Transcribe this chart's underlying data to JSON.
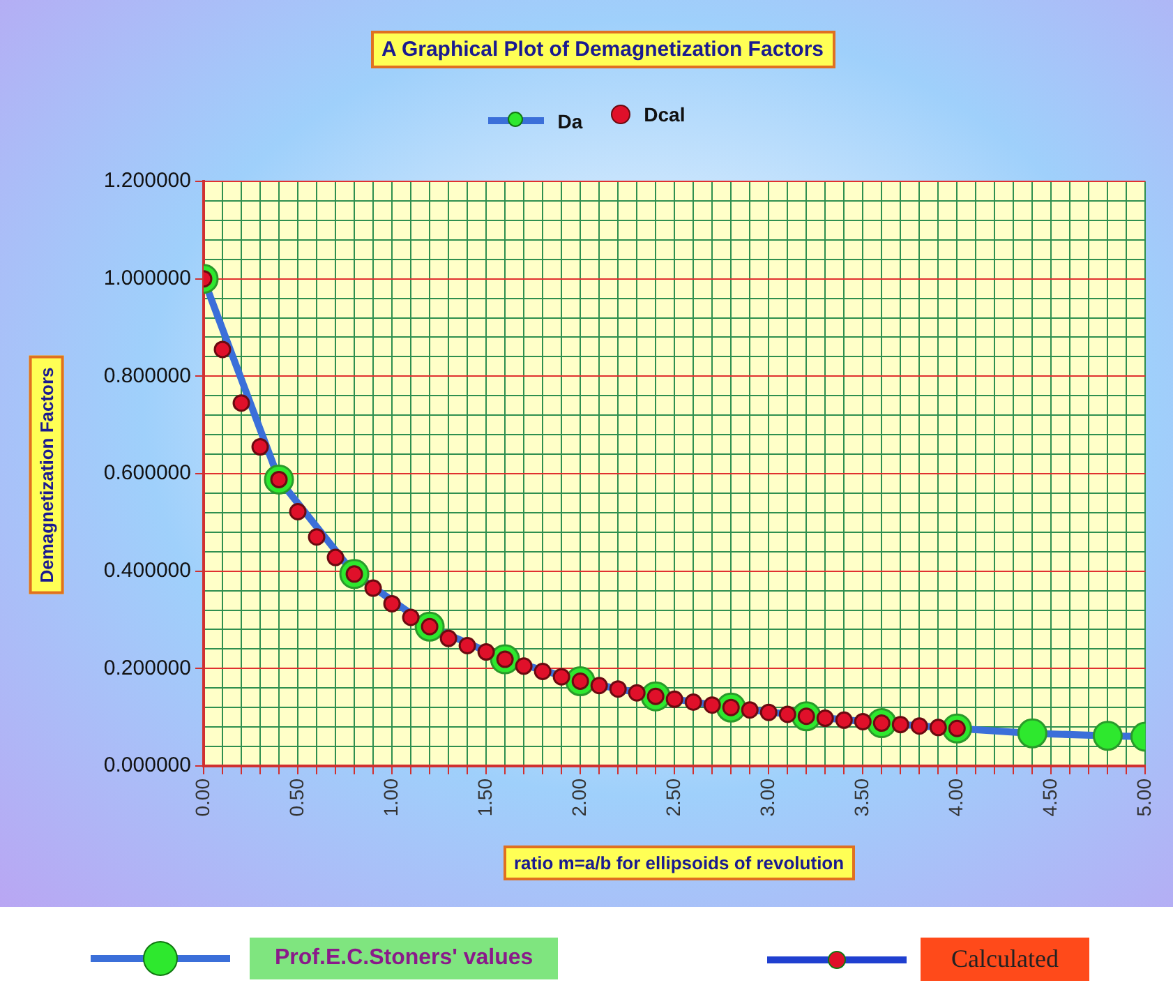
{
  "chart_data": {
    "type": "line",
    "title": "A Graphical Plot of Demagnetization Factors",
    "xlabel": "ratio m=a/b for ellipsoids of revolution",
    "ylabel": "Demagnetization Factors",
    "series": [
      {
        "name": "Da",
        "type": "line",
        "color": "#3b6fd9",
        "x": [
          0,
          0.4,
          0.8,
          1.2,
          1.6,
          2.0,
          2.4,
          2.8,
          3.2,
          3.6,
          4.0,
          4.4,
          4.8,
          5.0
        ],
        "values": [
          1.0,
          0.588,
          0.394,
          0.286,
          0.219,
          0.174,
          0.143,
          0.12,
          0.102,
          0.088,
          0.077,
          0.067,
          0.062,
          0.06
        ],
        "colors": [
          "#2ee82e",
          "#2ee82e",
          "#2ee82e",
          "#2ee82e",
          "#2ee82e",
          "#2ee82e",
          "#2ee82e",
          "#2ee82e",
          "#2ee82e",
          "#2ee82e",
          "#2ee82e",
          "#2ee82e",
          "#2ee82e",
          "#2ee82e"
        ]
      },
      {
        "name": "Dcal",
        "type": "scatter",
        "color": "#e0102a",
        "x": [
          0,
          0.1,
          0.2,
          0.3,
          0.4,
          0.5,
          0.6,
          0.7,
          0.8,
          0.9,
          1.0,
          1.1,
          1.2,
          1.3,
          1.4,
          1.5,
          1.6,
          1.7,
          1.8,
          1.9,
          2.0,
          2.1,
          2.2,
          2.3,
          2.4,
          2.5,
          2.6,
          2.7,
          2.8,
          2.9,
          3.0,
          3.1,
          3.2,
          3.3,
          3.4,
          3.5,
          3.6,
          3.7,
          3.8,
          3.9,
          4.0
        ],
        "values": [
          1.0,
          0.855,
          0.745,
          0.655,
          0.588,
          0.522,
          0.47,
          0.428,
          0.394,
          0.365,
          0.333,
          0.305,
          0.286,
          0.262,
          0.247,
          0.234,
          0.219,
          0.205,
          0.194,
          0.183,
          0.174,
          0.165,
          0.158,
          0.15,
          0.143,
          0.137,
          0.131,
          0.125,
          0.12,
          0.115,
          0.11,
          0.106,
          0.102,
          0.098,
          0.094,
          0.091,
          0.088,
          0.085,
          0.082,
          0.079,
          0.077
        ]
      }
    ],
    "xlim": [
      0,
      5
    ],
    "xticks": [
      {
        "value": 0,
        "label": "0.00"
      },
      {
        "value": 0.1,
        "label": null
      },
      {
        "value": 0.2,
        "label": null
      },
      {
        "value": 0.3,
        "label": null
      },
      {
        "value": 0.4,
        "label": null
      },
      {
        "value": 0.5,
        "label": "0.50"
      },
      {
        "value": 0.6,
        "label": null
      },
      {
        "value": 0.7,
        "label": null
      },
      {
        "value": 0.8,
        "label": null
      },
      {
        "value": 0.9,
        "label": null
      },
      {
        "value": 1,
        "label": "1.00"
      },
      {
        "value": 1.1,
        "label": null
      },
      {
        "value": 1.2,
        "label": null
      },
      {
        "value": 1.3,
        "label": null
      },
      {
        "value": 1.4,
        "label": null
      },
      {
        "value": 1.5,
        "label": "1.50"
      },
      {
        "value": 1.6,
        "label": null
      },
      {
        "value": 1.7,
        "label": null
      },
      {
        "value": 1.8,
        "label": null
      },
      {
        "value": 1.9,
        "label": null
      },
      {
        "value": 2,
        "label": "2.00"
      },
      {
        "value": 2.1,
        "label": null
      },
      {
        "value": 2.2,
        "label": null
      },
      {
        "value": 2.3,
        "label": null
      },
      {
        "value": 2.4,
        "label": null
      },
      {
        "value": 2.5,
        "label": "2.50"
      },
      {
        "value": 2.6,
        "label": null
      },
      {
        "value": 2.7,
        "label": null
      },
      {
        "value": 2.8,
        "label": null
      },
      {
        "value": 2.9,
        "label": null
      },
      {
        "value": 3,
        "label": "3.00"
      },
      {
        "value": 3.1,
        "label": null
      },
      {
        "value": 3.2,
        "label": null
      },
      {
        "value": 3.3,
        "label": null
      },
      {
        "value": 3.4,
        "label": null
      },
      {
        "value": 3.5,
        "label": "3.50"
      },
      {
        "value": 3.6,
        "label": null
      },
      {
        "value": 3.7,
        "label": null
      },
      {
        "value": 3.8,
        "label": null
      },
      {
        "value": 3.9,
        "label": null
      },
      {
        "value": 4,
        "label": "4.00"
      },
      {
        "value": 4.1,
        "label": null
      },
      {
        "value": 4.2,
        "label": null
      },
      {
        "value": 4.3,
        "label": null
      },
      {
        "value": 4.4,
        "label": null
      },
      {
        "value": 4.5,
        "label": "4.50"
      },
      {
        "value": 4.6,
        "label": null
      },
      {
        "value": 4.7,
        "label": null
      },
      {
        "value": 4.8,
        "label": null
      },
      {
        "value": 4.9,
        "label": null
      },
      {
        "value": 5,
        "label": "5.00"
      }
    ],
    "ylim": [
      0,
      1.2
    ],
    "yticks": [
      {
        "value": 0,
        "label": "0.000000"
      },
      {
        "value": 0.04,
        "label": null
      },
      {
        "value": 0.08,
        "label": null
      },
      {
        "value": 0.12,
        "label": null
      },
      {
        "value": 0.16,
        "label": null
      },
      {
        "value": 0.2,
        "label": "0.200000"
      },
      {
        "value": 0.24,
        "label": null
      },
      {
        "value": 0.28,
        "label": null
      },
      {
        "value": 0.32,
        "label": null
      },
      {
        "value": 0.36,
        "label": null
      },
      {
        "value": 0.4,
        "label": "0.400000"
      },
      {
        "value": 0.44,
        "label": null
      },
      {
        "value": 0.48,
        "label": null
      },
      {
        "value": 0.52,
        "label": null
      },
      {
        "value": 0.56,
        "label": null
      },
      {
        "value": 0.6,
        "label": "0.600000"
      },
      {
        "value": 0.64,
        "label": null
      },
      {
        "value": 0.68,
        "label": null
      },
      {
        "value": 0.72,
        "label": null
      },
      {
        "value": 0.76,
        "label": null
      },
      {
        "value": 0.8,
        "label": "0.800000"
      },
      {
        "value": 0.84,
        "label": null
      },
      {
        "value": 0.88,
        "label": null
      },
      {
        "value": 0.92,
        "label": null
      },
      {
        "value": 0.96,
        "label": null
      },
      {
        "value": 1.0,
        "label": "1.000000"
      },
      {
        "value": 1.04,
        "label": null
      },
      {
        "value": 1.08,
        "label": null
      },
      {
        "value": 1.12,
        "label": null
      },
      {
        "value": 1.16,
        "label": null
      },
      {
        "value": 1.2,
        "label": "1.200000"
      }
    ],
    "grid": true,
    "legend": "top",
    "marker": "circle",
    "annotations": [
      "Prof.E.C.Stoners' values",
      "Calculated"
    ]
  }
}
